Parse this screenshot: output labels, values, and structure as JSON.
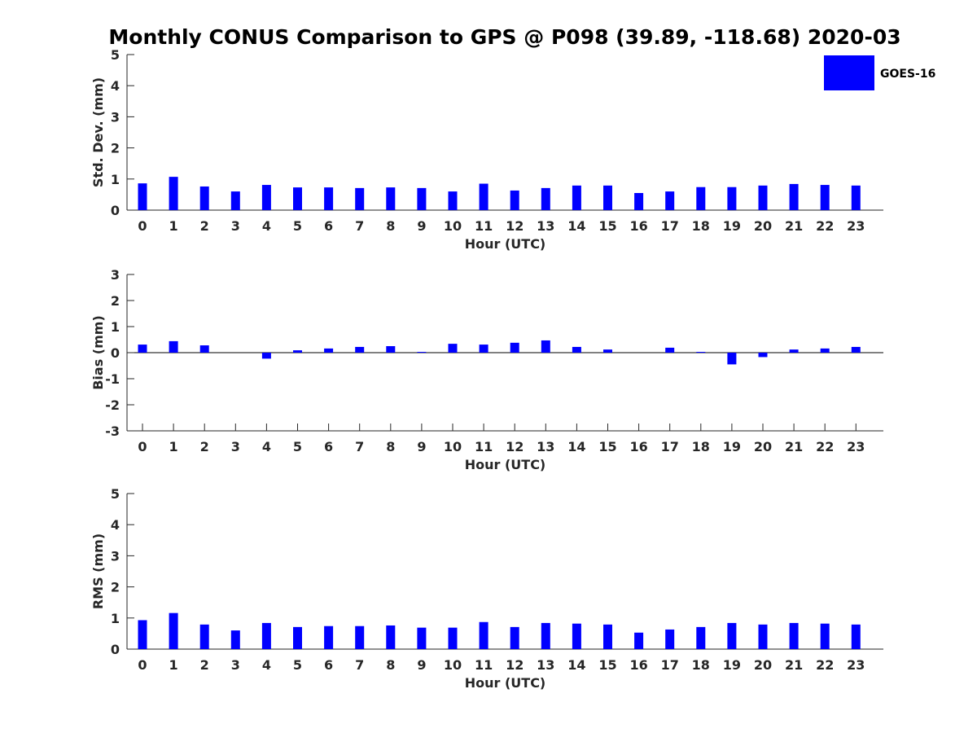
{
  "chart_data": [
    {
      "type": "bar",
      "title": "Monthly CONUS Comparison to GPS @ P098 (39.89, -118.68) 2020-03",
      "xlabel": "Hour (UTC)",
      "ylabel": "Std. Dev. (mm)",
      "ylim": [
        0,
        5
      ],
      "yticks": [
        "0",
        "1",
        "2",
        "3",
        "4",
        "5"
      ],
      "categories": [
        "0",
        "1",
        "2",
        "3",
        "4",
        "5",
        "6",
        "7",
        "8",
        "9",
        "10",
        "11",
        "12",
        "13",
        "14",
        "15",
        "16",
        "17",
        "18",
        "19",
        "20",
        "21",
        "22",
        "23"
      ],
      "legend": {
        "position": "top-right",
        "label": "GOES-16"
      },
      "series": [
        {
          "name": "GOES-16",
          "color": "#0000ff",
          "values": [
            0.86,
            1.07,
            0.76,
            0.6,
            0.81,
            0.73,
            0.73,
            0.71,
            0.73,
            0.71,
            0.6,
            0.85,
            0.63,
            0.71,
            0.79,
            0.79,
            0.55,
            0.6,
            0.74,
            0.74,
            0.79,
            0.84,
            0.81,
            0.79
          ]
        }
      ]
    },
    {
      "type": "bar",
      "xlabel": "Hour (UTC)",
      "ylabel": "Bias (mm)",
      "ylim": [
        -3,
        3
      ],
      "yticks": [
        "-3",
        "-2",
        "-1",
        "0",
        "1",
        "2",
        "3"
      ],
      "categories": [
        "0",
        "1",
        "2",
        "3",
        "4",
        "5",
        "6",
        "7",
        "8",
        "9",
        "10",
        "11",
        "12",
        "13",
        "14",
        "15",
        "16",
        "17",
        "18",
        "19",
        "20",
        "21",
        "22",
        "23"
      ],
      "series": [
        {
          "name": "GOES-16",
          "color": "#0000ff",
          "values": [
            0.31,
            0.44,
            0.28,
            0.0,
            -0.23,
            0.09,
            0.16,
            0.22,
            0.25,
            0.03,
            0.34,
            0.31,
            0.38,
            0.47,
            0.22,
            0.12,
            0.0,
            0.19,
            0.03,
            -0.45,
            -0.17,
            0.12,
            0.16,
            0.22
          ]
        }
      ]
    },
    {
      "type": "bar",
      "xlabel": "Hour (UTC)",
      "ylabel": "RMS (mm)",
      "ylim": [
        0,
        5
      ],
      "yticks": [
        "0",
        "1",
        "2",
        "3",
        "4",
        "5"
      ],
      "categories": [
        "0",
        "1",
        "2",
        "3",
        "4",
        "5",
        "6",
        "7",
        "8",
        "9",
        "10",
        "11",
        "12",
        "13",
        "14",
        "15",
        "16",
        "17",
        "18",
        "19",
        "20",
        "21",
        "22",
        "23"
      ],
      "series": [
        {
          "name": "GOES-16",
          "color": "#0000ff",
          "values": [
            0.93,
            1.16,
            0.79,
            0.6,
            0.84,
            0.71,
            0.74,
            0.74,
            0.76,
            0.69,
            0.69,
            0.87,
            0.71,
            0.84,
            0.82,
            0.79,
            0.53,
            0.63,
            0.71,
            0.84,
            0.79,
            0.84,
            0.82,
            0.79
          ]
        }
      ]
    }
  ]
}
